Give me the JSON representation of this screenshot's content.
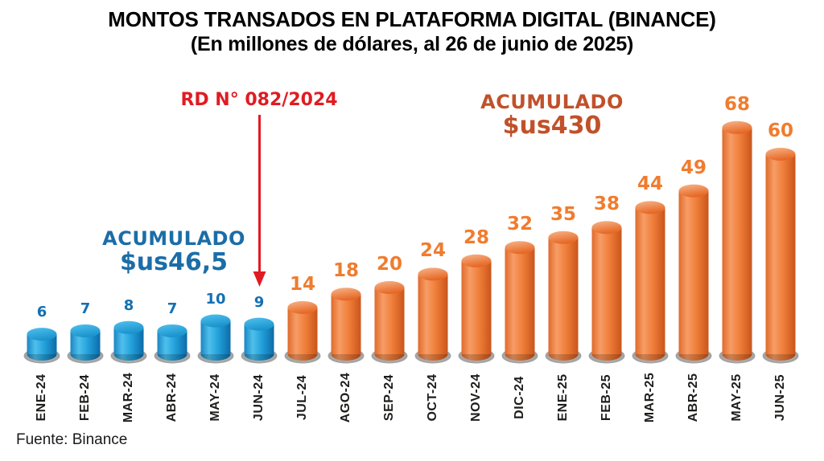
{
  "colors": {
    "blue_bar": {
      "edge_left": "#1b85c2",
      "highlight": "#4fc0ed",
      "mid": "#219fd9",
      "edge_right": "#0d6ba8",
      "top_light": "#50c2ee",
      "top_dark": "#1b93cd",
      "label": "#1470b2"
    },
    "orange_bar": {
      "edge_left": "#e06a2b",
      "highlight": "#f79d66",
      "mid": "#ef7d39",
      "edge_right": "#c9551b",
      "top_light": "#f8b68c",
      "top_dark": "#e66825",
      "label": "#f07c2e"
    },
    "base_gray": "#a0a0a0",
    "base_gray_light": "#c9c9c9",
    "red": "#e01b22",
    "blue_text": "#1b6da8",
    "orange_text": "#c0512a",
    "axis_text": "#1d1d1b",
    "title_text": "#000000"
  },
  "chart_data": {
    "type": "bar",
    "style": "3d-cylinder",
    "title": "MONTOS TRANSADOS EN PLATAFORMA DIGITAL (BINANCE)",
    "subtitle": "(En millones de dólares, al 26 de junio de 2025)",
    "categories": [
      "ENE-24",
      "FEB-24",
      "MAR-24",
      "ABR-24",
      "MAY-24",
      "JUN-24",
      "JUL-24",
      "AGO-24",
      "SEP-24",
      "OCT-24",
      "NOV-24",
      "DIC-24",
      "ENE-25",
      "FEB-25",
      "MAR-25",
      "ABR-25",
      "MAY-25",
      "JUN-25"
    ],
    "values": [
      6,
      7,
      8,
      7,
      10,
      9,
      14,
      18,
      20,
      24,
      28,
      32,
      35,
      38,
      44,
      49,
      68,
      60
    ],
    "bar_colors": [
      "blue_bar",
      "blue_bar",
      "blue_bar",
      "blue_bar",
      "blue_bar",
      "blue_bar",
      "orange_bar",
      "orange_bar",
      "orange_bar",
      "orange_bar",
      "orange_bar",
      "orange_bar",
      "orange_bar",
      "orange_bar",
      "orange_bar",
      "orange_bar",
      "orange_bar",
      "orange_bar"
    ],
    "value_labels": true,
    "grid": false,
    "ylim": [
      0,
      72
    ],
    "annotations": {
      "rd": {
        "text": "RD N° 082/2024",
        "points_to": "JUN-24"
      },
      "acumulado_blue": {
        "label": "ACUMULADO",
        "value": "$us46,5"
      },
      "acumulado_orange": {
        "label": "ACUMULADO",
        "value": "$us430"
      }
    },
    "source": "Fuente: Binance"
  }
}
